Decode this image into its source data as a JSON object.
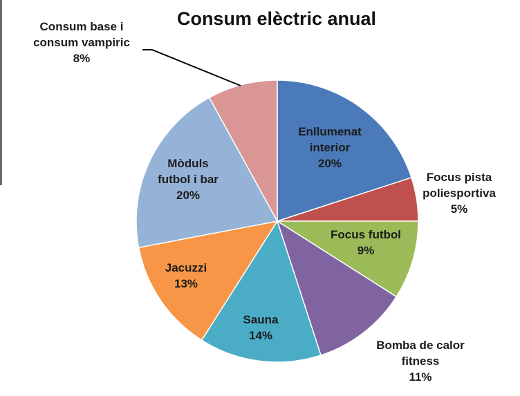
{
  "chart_data": {
    "type": "pie",
    "title": "Consum elèctric anual",
    "start_angle_deg": 0,
    "direction": "clockwise",
    "slices": [
      {
        "name_lines": [
          "Enllumenat",
          "interior"
        ],
        "percent_label": "20%",
        "value": 20,
        "color": "#4a7ab9",
        "label_position": "inside"
      },
      {
        "name_lines": [
          "Focus pista",
          "poliesportiva"
        ],
        "percent_label": "5%",
        "value": 5,
        "color": "#c0504d",
        "label_position": "outside"
      },
      {
        "name_lines": [
          "Focus futbol"
        ],
        "percent_label": "9%",
        "value": 9,
        "color": "#9bbb59",
        "label_position": "inside"
      },
      {
        "name_lines": [
          "Bomba de calor",
          "fitness"
        ],
        "percent_label": "11%",
        "value": 11,
        "color": "#8064a2",
        "label_position": "outside"
      },
      {
        "name_lines": [
          "Sauna"
        ],
        "percent_label": "14%",
        "value": 14,
        "color": "#4bacc6",
        "label_position": "inside"
      },
      {
        "name_lines": [
          "Jacuzzi"
        ],
        "percent_label": "13%",
        "value": 13,
        "color": "#f79646",
        "label_position": "inside"
      },
      {
        "name_lines": [
          "Mòduls",
          "futbol i bar"
        ],
        "percent_label": "20%",
        "value": 20,
        "color": "#95b3d7",
        "label_position": "inside"
      },
      {
        "name_lines": [
          "Consum base i",
          "consum vampiric"
        ],
        "percent_label": "8%",
        "value": 8,
        "color": "#d99694",
        "label_position": "outside-with-leader"
      }
    ]
  }
}
